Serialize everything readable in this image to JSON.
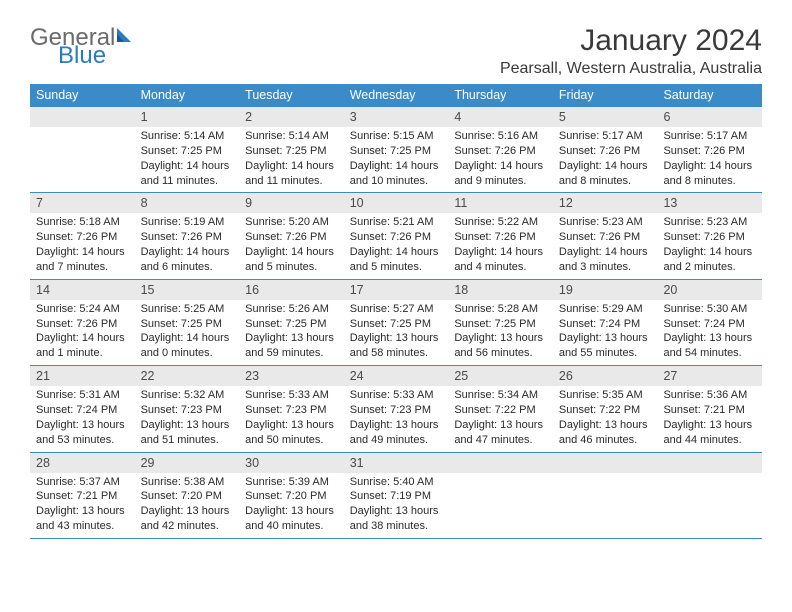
{
  "brand": {
    "general": "General",
    "blue": "Blue"
  },
  "title": "January 2024",
  "location": "Pearsall, Western Australia, Australia",
  "colors": {
    "header_bg": "#3b8bc9",
    "header_text": "#ffffff",
    "daynum_bg": "#e9e9e9",
    "rule": "#3b8bc9",
    "body_text": "#2a2a2a",
    "title_text": "#3a3a3a",
    "logo_gray": "#6a6a6a",
    "logo_blue": "#2b7bbf"
  },
  "daysOfWeek": [
    "Sunday",
    "Monday",
    "Tuesday",
    "Wednesday",
    "Thursday",
    "Friday",
    "Saturday"
  ],
  "weeks": [
    [
      {
        "n": "",
        "sunrise": "",
        "sunset": "",
        "daylight": ""
      },
      {
        "n": "1",
        "sunrise": "Sunrise: 5:14 AM",
        "sunset": "Sunset: 7:25 PM",
        "daylight": "Daylight: 14 hours and 11 minutes."
      },
      {
        "n": "2",
        "sunrise": "Sunrise: 5:14 AM",
        "sunset": "Sunset: 7:25 PM",
        "daylight": "Daylight: 14 hours and 11 minutes."
      },
      {
        "n": "3",
        "sunrise": "Sunrise: 5:15 AM",
        "sunset": "Sunset: 7:25 PM",
        "daylight": "Daylight: 14 hours and 10 minutes."
      },
      {
        "n": "4",
        "sunrise": "Sunrise: 5:16 AM",
        "sunset": "Sunset: 7:26 PM",
        "daylight": "Daylight: 14 hours and 9 minutes."
      },
      {
        "n": "5",
        "sunrise": "Sunrise: 5:17 AM",
        "sunset": "Sunset: 7:26 PM",
        "daylight": "Daylight: 14 hours and 8 minutes."
      },
      {
        "n": "6",
        "sunrise": "Sunrise: 5:17 AM",
        "sunset": "Sunset: 7:26 PM",
        "daylight": "Daylight: 14 hours and 8 minutes."
      }
    ],
    [
      {
        "n": "7",
        "sunrise": "Sunrise: 5:18 AM",
        "sunset": "Sunset: 7:26 PM",
        "daylight": "Daylight: 14 hours and 7 minutes."
      },
      {
        "n": "8",
        "sunrise": "Sunrise: 5:19 AM",
        "sunset": "Sunset: 7:26 PM",
        "daylight": "Daylight: 14 hours and 6 minutes."
      },
      {
        "n": "9",
        "sunrise": "Sunrise: 5:20 AM",
        "sunset": "Sunset: 7:26 PM",
        "daylight": "Daylight: 14 hours and 5 minutes."
      },
      {
        "n": "10",
        "sunrise": "Sunrise: 5:21 AM",
        "sunset": "Sunset: 7:26 PM",
        "daylight": "Daylight: 14 hours and 5 minutes."
      },
      {
        "n": "11",
        "sunrise": "Sunrise: 5:22 AM",
        "sunset": "Sunset: 7:26 PM",
        "daylight": "Daylight: 14 hours and 4 minutes."
      },
      {
        "n": "12",
        "sunrise": "Sunrise: 5:23 AM",
        "sunset": "Sunset: 7:26 PM",
        "daylight": "Daylight: 14 hours and 3 minutes."
      },
      {
        "n": "13",
        "sunrise": "Sunrise: 5:23 AM",
        "sunset": "Sunset: 7:26 PM",
        "daylight": "Daylight: 14 hours and 2 minutes."
      }
    ],
    [
      {
        "n": "14",
        "sunrise": "Sunrise: 5:24 AM",
        "sunset": "Sunset: 7:26 PM",
        "daylight": "Daylight: 14 hours and 1 minute."
      },
      {
        "n": "15",
        "sunrise": "Sunrise: 5:25 AM",
        "sunset": "Sunset: 7:25 PM",
        "daylight": "Daylight: 14 hours and 0 minutes."
      },
      {
        "n": "16",
        "sunrise": "Sunrise: 5:26 AM",
        "sunset": "Sunset: 7:25 PM",
        "daylight": "Daylight: 13 hours and 59 minutes."
      },
      {
        "n": "17",
        "sunrise": "Sunrise: 5:27 AM",
        "sunset": "Sunset: 7:25 PM",
        "daylight": "Daylight: 13 hours and 58 minutes."
      },
      {
        "n": "18",
        "sunrise": "Sunrise: 5:28 AM",
        "sunset": "Sunset: 7:25 PM",
        "daylight": "Daylight: 13 hours and 56 minutes."
      },
      {
        "n": "19",
        "sunrise": "Sunrise: 5:29 AM",
        "sunset": "Sunset: 7:24 PM",
        "daylight": "Daylight: 13 hours and 55 minutes."
      },
      {
        "n": "20",
        "sunrise": "Sunrise: 5:30 AM",
        "sunset": "Sunset: 7:24 PM",
        "daylight": "Daylight: 13 hours and 54 minutes."
      }
    ],
    [
      {
        "n": "21",
        "sunrise": "Sunrise: 5:31 AM",
        "sunset": "Sunset: 7:24 PM",
        "daylight": "Daylight: 13 hours and 53 minutes."
      },
      {
        "n": "22",
        "sunrise": "Sunrise: 5:32 AM",
        "sunset": "Sunset: 7:23 PM",
        "daylight": "Daylight: 13 hours and 51 minutes."
      },
      {
        "n": "23",
        "sunrise": "Sunrise: 5:33 AM",
        "sunset": "Sunset: 7:23 PM",
        "daylight": "Daylight: 13 hours and 50 minutes."
      },
      {
        "n": "24",
        "sunrise": "Sunrise: 5:33 AM",
        "sunset": "Sunset: 7:23 PM",
        "daylight": "Daylight: 13 hours and 49 minutes."
      },
      {
        "n": "25",
        "sunrise": "Sunrise: 5:34 AM",
        "sunset": "Sunset: 7:22 PM",
        "daylight": "Daylight: 13 hours and 47 minutes."
      },
      {
        "n": "26",
        "sunrise": "Sunrise: 5:35 AM",
        "sunset": "Sunset: 7:22 PM",
        "daylight": "Daylight: 13 hours and 46 minutes."
      },
      {
        "n": "27",
        "sunrise": "Sunrise: 5:36 AM",
        "sunset": "Sunset: 7:21 PM",
        "daylight": "Daylight: 13 hours and 44 minutes."
      }
    ],
    [
      {
        "n": "28",
        "sunrise": "Sunrise: 5:37 AM",
        "sunset": "Sunset: 7:21 PM",
        "daylight": "Daylight: 13 hours and 43 minutes."
      },
      {
        "n": "29",
        "sunrise": "Sunrise: 5:38 AM",
        "sunset": "Sunset: 7:20 PM",
        "daylight": "Daylight: 13 hours and 42 minutes."
      },
      {
        "n": "30",
        "sunrise": "Sunrise: 5:39 AM",
        "sunset": "Sunset: 7:20 PM",
        "daylight": "Daylight: 13 hours and 40 minutes."
      },
      {
        "n": "31",
        "sunrise": "Sunrise: 5:40 AM",
        "sunset": "Sunset: 7:19 PM",
        "daylight": "Daylight: 13 hours and 38 minutes."
      },
      {
        "n": "",
        "sunrise": "",
        "sunset": "",
        "daylight": ""
      },
      {
        "n": "",
        "sunrise": "",
        "sunset": "",
        "daylight": ""
      },
      {
        "n": "",
        "sunrise": "",
        "sunset": "",
        "daylight": ""
      }
    ]
  ]
}
